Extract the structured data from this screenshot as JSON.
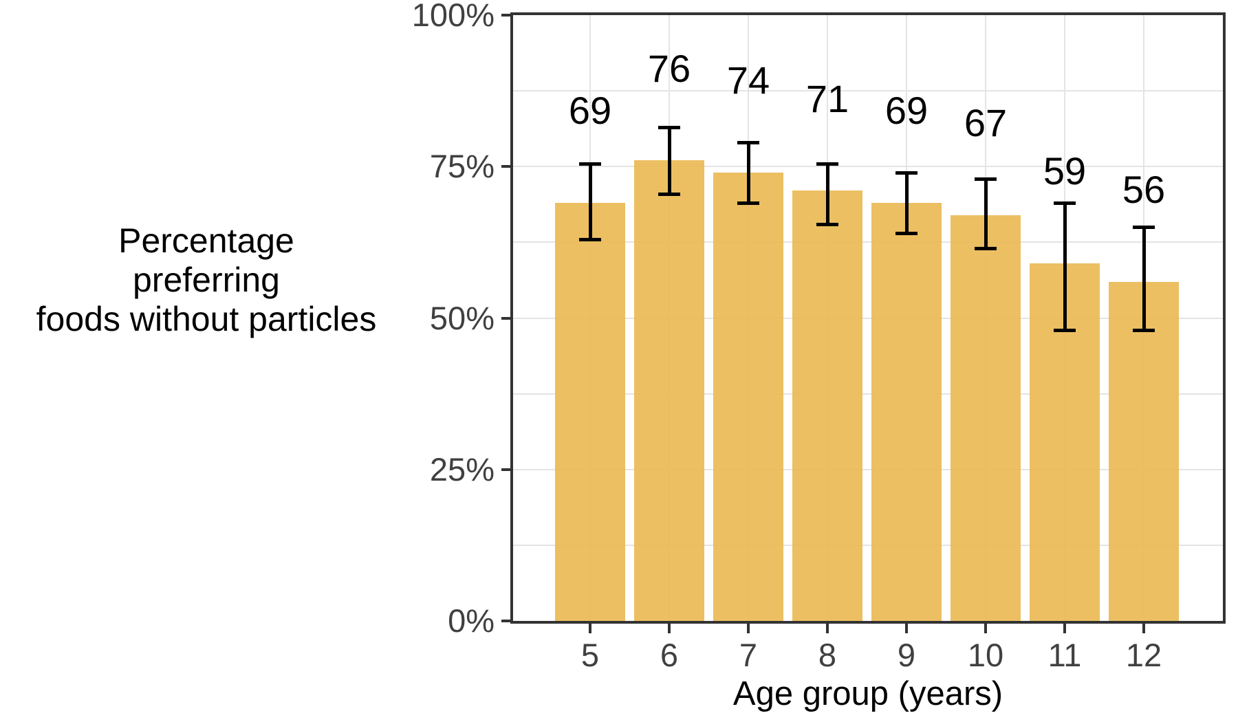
{
  "figure": {
    "background": "#FFFFFF"
  },
  "chart_data": {
    "type": "bar",
    "title": "",
    "xlabel": "Age group (years)",
    "ylabel": "Percentage\npreferring\nfoods without particles",
    "categories": [
      "5",
      "6",
      "7",
      "8",
      "9",
      "10",
      "11",
      "12"
    ],
    "values": [
      69,
      76,
      74,
      71,
      69,
      67,
      59,
      56
    ],
    "bar_labels": [
      "69",
      "76",
      "74",
      "71",
      "69",
      "67",
      "59",
      "56"
    ],
    "error_low": [
      63,
      70.5,
      69,
      65.5,
      64,
      61.5,
      48,
      48
    ],
    "error_high": [
      75.5,
      81.5,
      79,
      75.5,
      74,
      73,
      69,
      65
    ],
    "ylim": [
      0,
      100
    ],
    "ytick_values": [
      0,
      25,
      50,
      75,
      100
    ],
    "ytick_labels": [
      "0%",
      "25%",
      "50%",
      "75%",
      "100%"
    ],
    "y_minor_gridlines": [
      12.5,
      37.5,
      62.5,
      87.5
    ],
    "legend": "none",
    "grid": {
      "horizontal": "major+minor",
      "vertical": "major-at-categories"
    },
    "colors": {
      "bar_fill": "#EABA55",
      "bar_fill_opacity": 0.92,
      "error_bar": "#000000",
      "gridline": "#E4E4E4",
      "panel_border": "#333333",
      "axis_tick": "#333333",
      "axis_text": "#404040",
      "value_label": "#000000",
      "background": "#FFFFFF"
    }
  }
}
